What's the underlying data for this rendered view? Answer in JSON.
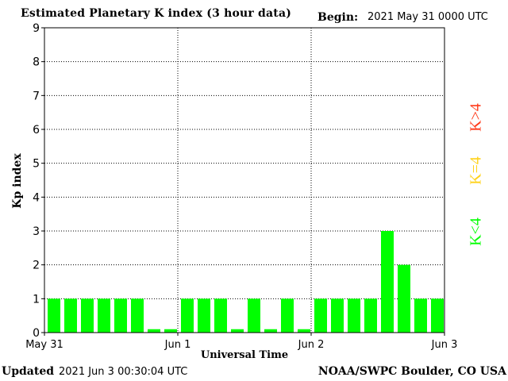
{
  "header": {
    "title": "Estimated Planetary K index (3 hour data)",
    "begin_label": "Begin:",
    "begin_value": "2021 May 31 0000 UTC"
  },
  "footer": {
    "updated_label": "Updated",
    "updated_value": "2021 Jun  3 00:30:04 UTC",
    "credit": "NOAA/SWPC Boulder, CO USA"
  },
  "legend": {
    "high": "K>4",
    "mid": "K=4",
    "low": "K<4",
    "colors": {
      "high": "#ff3a1a",
      "mid": "#ffd21a",
      "low": "#00ff00"
    }
  },
  "chart_data": {
    "type": "bar",
    "title": "Estimated Planetary K index (3 hour data)",
    "xlabel": "Universal Time",
    "ylabel": "Kp index",
    "ylim": [
      0,
      9
    ],
    "yticks": [
      "0",
      "1",
      "2",
      "3",
      "4",
      "5",
      "6",
      "7",
      "8",
      "9"
    ],
    "xtick_labels": [
      "May 31",
      "Jun 1",
      "Jun 2",
      "Jun 3"
    ],
    "grid": "dotted",
    "bar_color": "#00ff00",
    "values": [
      1,
      1,
      1,
      1,
      1,
      1,
      0.1,
      0.1,
      1,
      1,
      1,
      0.1,
      1,
      0.1,
      1,
      0.1,
      1,
      1,
      1,
      1,
      3,
      2,
      1,
      1
    ]
  }
}
